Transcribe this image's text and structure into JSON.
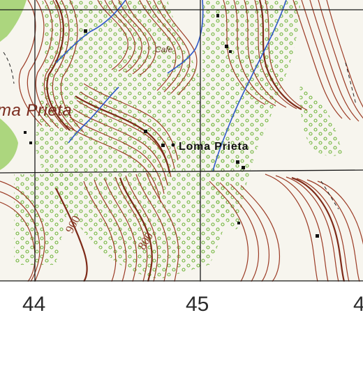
{
  "map": {
    "place_labels": {
      "loma_prieta_region": "ma Prieta",
      "loma_prieta_peak": "Loma Prieta",
      "cafe": "Cafe"
    },
    "contour_elevations": {
      "label_900": "900",
      "label_800": "800"
    },
    "grid_easting_labels": [
      "44",
      "45",
      "4"
    ],
    "colors": {
      "contour": "#9b3b25",
      "contour_index": "#7e2a18",
      "vegetation_dots": "#6fb43a",
      "stream": "#2f58c8",
      "grid": "#1a1a1a",
      "paper": "#f7f5ee",
      "forest_patch": "#9fd06a"
    }
  }
}
